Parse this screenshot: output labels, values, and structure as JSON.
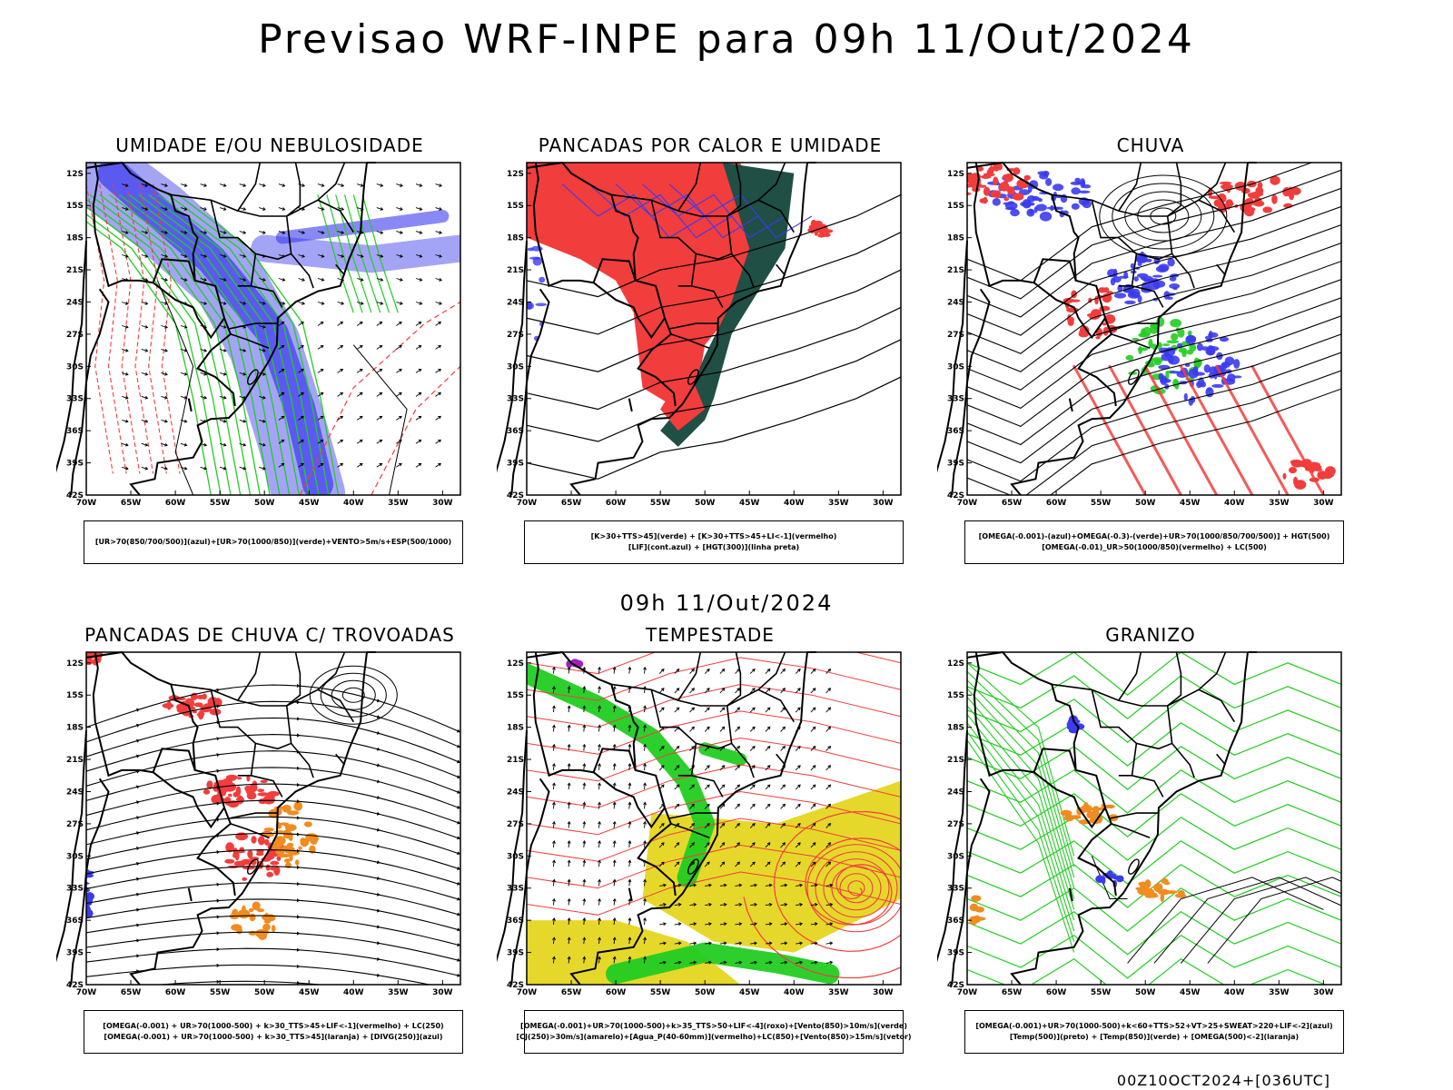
{
  "main_title": "Previsao WRF-INPE  para 09h 11/Out/2024",
  "mid_title": "09h 11/Out/2024",
  "footer": "00Z10OCT2024+[036UTC]",
  "lat_labels": [
    "12S",
    "15S",
    "18S",
    "21S",
    "24S",
    "27S",
    "30S",
    "33S",
    "36S",
    "39S",
    "42S"
  ],
  "lon_labels": [
    "70W",
    "65W",
    "60W",
    "55W",
    "50W",
    "45W",
    "40W",
    "35W",
    "30W"
  ],
  "colors": {
    "blue": "#3b3bf0",
    "lavender": "#9a9af5",
    "green": "#22cc22",
    "red": "#f23d3d",
    "darkgreen": "#1f4f45",
    "orange": "#f08c20",
    "yellow": "#e6d82a",
    "purple": "#a020c0"
  },
  "panels": [
    {
      "title": "UMIDADE E/OU NEBULOSIDADE",
      "legend": [
        "[UR>70(850/700/500)](azul)+[UR>70(1000/850)](verde)+VENTO>5m/s+ESP(500/1000)"
      ]
    },
    {
      "title": "PANCADAS POR CALOR E UMIDADE",
      "legend": [
        "[K>30+TTS>45](verde) + [K>30+TTS>45+LI<-1](vermelho)",
        "[LIF](cont.azul) + [HGT(300)](linha preta)"
      ]
    },
    {
      "title": "CHUVA",
      "legend": [
        "[OMEGA(-0.001)-(azul)+OMEGA(-0.3)-(verde)+UR>70(1000/850/700/500)] + HGT(500)",
        "[OMEGA(-0.01)_UR>50(1000/850)(vermelho) + LC(500)"
      ]
    },
    {
      "title": "PANCADAS DE CHUVA C/ TROVOADAS",
      "legend": [
        "[OMEGA(-0.001) + UR>70(1000-500) + k>30_TTS>45+LIF<-1](vermelho) + LC(250)",
        "[OMEGA(-0.001) + UR>70(1000-500) + k>30_TTS>45](laranja) + [DIVG(250)](azul)"
      ]
    },
    {
      "title": "TEMPESTADE",
      "legend": [
        "[OMEGA(-0.001)+UR>70(1000-500)+k>35_TTS>50+LIF<-4](roxo)+[Vento(850)>10m/s](verde)",
        "[CJ(250)>30m/s](amarelo)+[Agua_P(40-60mm)](vermelho)+LC(850)+[Vento(850)>15m/s](vetor)"
      ]
    },
    {
      "title": "GRANIZO",
      "legend": [
        "[OMEGA(-0.001)+UR>70(1000-500)+k<60+TTS>52+VT>25+SWEAT>220+LIF<-2](azul)",
        "[Temp(500)](preto) + [Temp(850)](verde) + [OMEGA(500)<-2](laranja)"
      ]
    }
  ]
}
